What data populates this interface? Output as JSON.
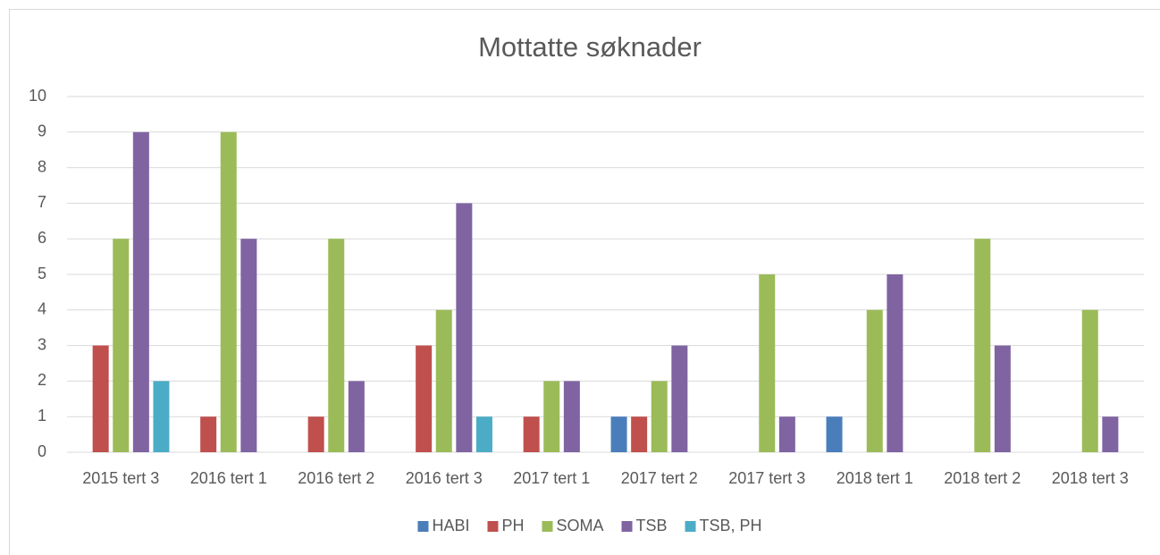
{
  "chart_data": {
    "type": "bar",
    "title": "Mottatte søknader",
    "categories": [
      "2015 tert 3",
      "2016 tert 1",
      "2016 tert 2",
      "2016 tert 3",
      "2017 tert 1",
      "2017 tert 2",
      "2017 tert 3",
      "2018 tert 1",
      "2018 tert 2",
      "2018 tert 3"
    ],
    "series": [
      {
        "name": "HABI",
        "color": "#4a7ebb",
        "values": [
          null,
          null,
          null,
          null,
          null,
          1,
          null,
          1,
          null,
          null
        ]
      },
      {
        "name": "PH",
        "color": "#c0504d",
        "values": [
          3,
          1,
          1,
          3,
          1,
          1,
          null,
          null,
          null,
          null
        ]
      },
      {
        "name": "SOMA",
        "color": "#9bbb59",
        "values": [
          6,
          9,
          6,
          4,
          2,
          2,
          5,
          4,
          6,
          4
        ]
      },
      {
        "name": "TSB",
        "color": "#8064a2",
        "values": [
          9,
          6,
          2,
          7,
          2,
          3,
          1,
          5,
          3,
          1
        ]
      },
      {
        "name": "TSB, PH",
        "color": "#4bacc6",
        "values": [
          2,
          null,
          null,
          1,
          null,
          null,
          null,
          null,
          null,
          null
        ]
      }
    ],
    "ylim": [
      0,
      10
    ],
    "yticks": [
      0,
      1,
      2,
      3,
      4,
      5,
      6,
      7,
      8,
      9,
      10
    ],
    "grid": true,
    "legend": "bottom"
  }
}
